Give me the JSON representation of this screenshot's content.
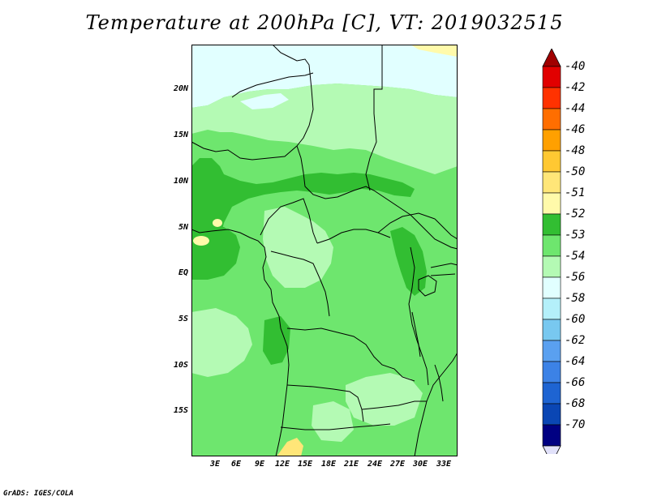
{
  "title": "Temperature at 200hPa [C], VT: 2019032515",
  "credit": "GrADS: IGES/COLA",
  "latitude_labels": [
    "20N",
    "15N",
    "10N",
    "5N",
    "EQ",
    "5S",
    "10S",
    "15S"
  ],
  "longitude_labels": [
    "3E",
    "6E",
    "9E",
    "12E",
    "15E",
    "18E",
    "21E",
    "24E",
    "27E",
    "30E",
    "33E"
  ],
  "colorbar": {
    "labels": [
      "-40",
      "-42",
      "-44",
      "-46",
      "-48",
      "-50",
      "-51",
      "-52",
      "-53",
      "-54",
      "-56",
      "-58",
      "-60",
      "-62",
      "-64",
      "-66",
      "-68",
      "-70"
    ],
    "colors": [
      "#a00000",
      "#e10000",
      "#ff3200",
      "#ff6e00",
      "#ffa000",
      "#ffc832",
      "#ffe678",
      "#fffaaa",
      "#32be32",
      "#6ee66e",
      "#b4fab4",
      "#e1ffff",
      "#b4f0fa",
      "#78c8f0",
      "#5aa0f0",
      "#3c82e6",
      "#1e64d2",
      "#0a46b4",
      "#000082",
      "#e1e1fa"
    ]
  },
  "field_colors": {
    "-50": "#fffaaa",
    "-51": "#32be32",
    "-52": "#6ee66e",
    "-53": "#b4fab4",
    "-54": "#e1ffff",
    "-48": "#ffe678"
  }
}
